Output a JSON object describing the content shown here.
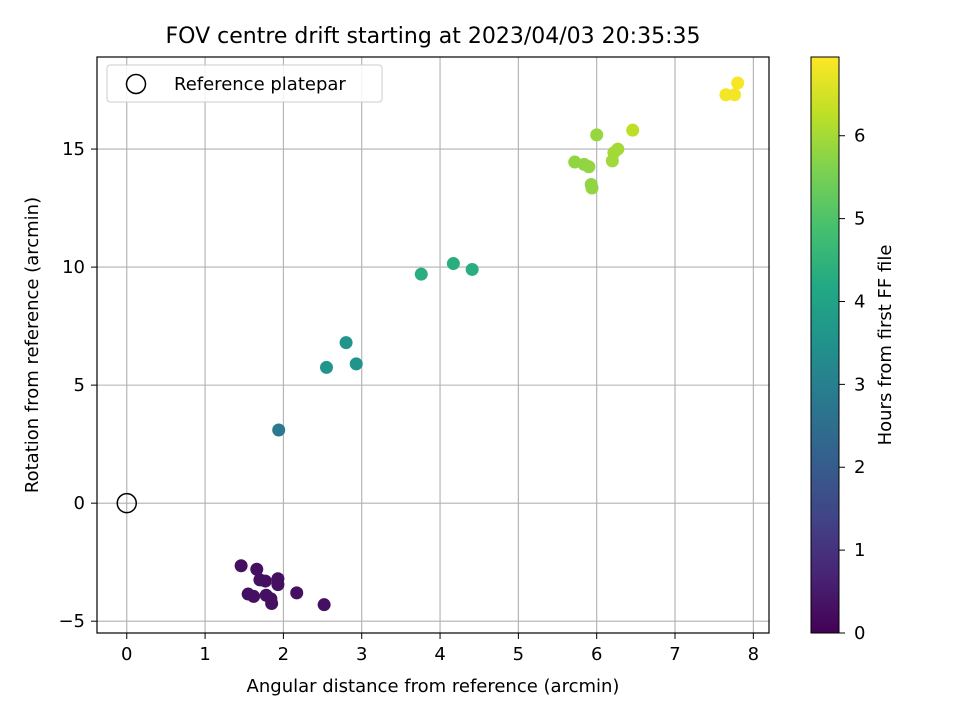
{
  "chart_data": {
    "type": "scatter",
    "title": "FOV centre drift starting at 2023/04/03 20:35:35",
    "xlabel": "Angular distance from reference (arcmin)",
    "ylabel": "Rotation from reference (arcmin)",
    "xlim": [
      -0.38,
      8.2
    ],
    "ylim": [
      -5.5,
      18.9
    ],
    "xticks": [
      0,
      1,
      2,
      3,
      4,
      5,
      6,
      7,
      8
    ],
    "yticks": [
      -5,
      0,
      5,
      10,
      15
    ],
    "grid": true,
    "legend": {
      "position": "top-left",
      "entries": [
        "Reference platepar"
      ]
    },
    "reference_point": {
      "x": 0,
      "y": 0,
      "label": "Reference platepar"
    },
    "colorbar": {
      "label": "Hours from first FF file",
      "range": [
        0,
        6.95
      ],
      "ticks": [
        0,
        1,
        2,
        3,
        4,
        5,
        6
      ],
      "colormap": "viridis"
    },
    "points": [
      {
        "x": 1.46,
        "y": -2.65,
        "h": 0.3
      },
      {
        "x": 1.66,
        "y": -2.8,
        "h": 0.3
      },
      {
        "x": 1.7,
        "y": -3.25,
        "h": 0.3
      },
      {
        "x": 1.77,
        "y": -3.3,
        "h": 0.3
      },
      {
        "x": 1.93,
        "y": -3.2,
        "h": 0.3
      },
      {
        "x": 1.93,
        "y": -3.45,
        "h": 0.3
      },
      {
        "x": 1.55,
        "y": -3.85,
        "h": 0.3
      },
      {
        "x": 1.62,
        "y": -3.95,
        "h": 0.3
      },
      {
        "x": 1.78,
        "y": -3.9,
        "h": 0.3
      },
      {
        "x": 1.84,
        "y": -4.05,
        "h": 0.3
      },
      {
        "x": 1.85,
        "y": -4.25,
        "h": 0.3
      },
      {
        "x": 2.17,
        "y": -3.8,
        "h": 0.3
      },
      {
        "x": 2.52,
        "y": -4.3,
        "h": 0.3
      },
      {
        "x": 1.94,
        "y": 3.1,
        "h": 2.8
      },
      {
        "x": 2.55,
        "y": 5.75,
        "h": 3.6
      },
      {
        "x": 2.8,
        "y": 6.8,
        "h": 3.6
      },
      {
        "x": 2.93,
        "y": 5.9,
        "h": 3.6
      },
      {
        "x": 3.76,
        "y": 9.7,
        "h": 4.35
      },
      {
        "x": 4.17,
        "y": 10.15,
        "h": 4.35
      },
      {
        "x": 4.41,
        "y": 9.9,
        "h": 4.35
      },
      {
        "x": 5.72,
        "y": 14.45,
        "h": 5.8
      },
      {
        "x": 5.84,
        "y": 14.35,
        "h": 5.8
      },
      {
        "x": 5.9,
        "y": 14.25,
        "h": 5.8
      },
      {
        "x": 5.93,
        "y": 13.5,
        "h": 5.8
      },
      {
        "x": 5.94,
        "y": 13.35,
        "h": 5.8
      },
      {
        "x": 6.0,
        "y": 15.6,
        "h": 5.85
      },
      {
        "x": 6.2,
        "y": 14.5,
        "h": 5.95
      },
      {
        "x": 6.22,
        "y": 14.85,
        "h": 5.95
      },
      {
        "x": 6.27,
        "y": 15.0,
        "h": 6.0
      },
      {
        "x": 6.46,
        "y": 15.8,
        "h": 6.25
      },
      {
        "x": 7.65,
        "y": 17.3,
        "h": 6.85
      },
      {
        "x": 7.76,
        "y": 17.3,
        "h": 6.85
      },
      {
        "x": 7.8,
        "y": 17.8,
        "h": 6.9
      }
    ]
  }
}
